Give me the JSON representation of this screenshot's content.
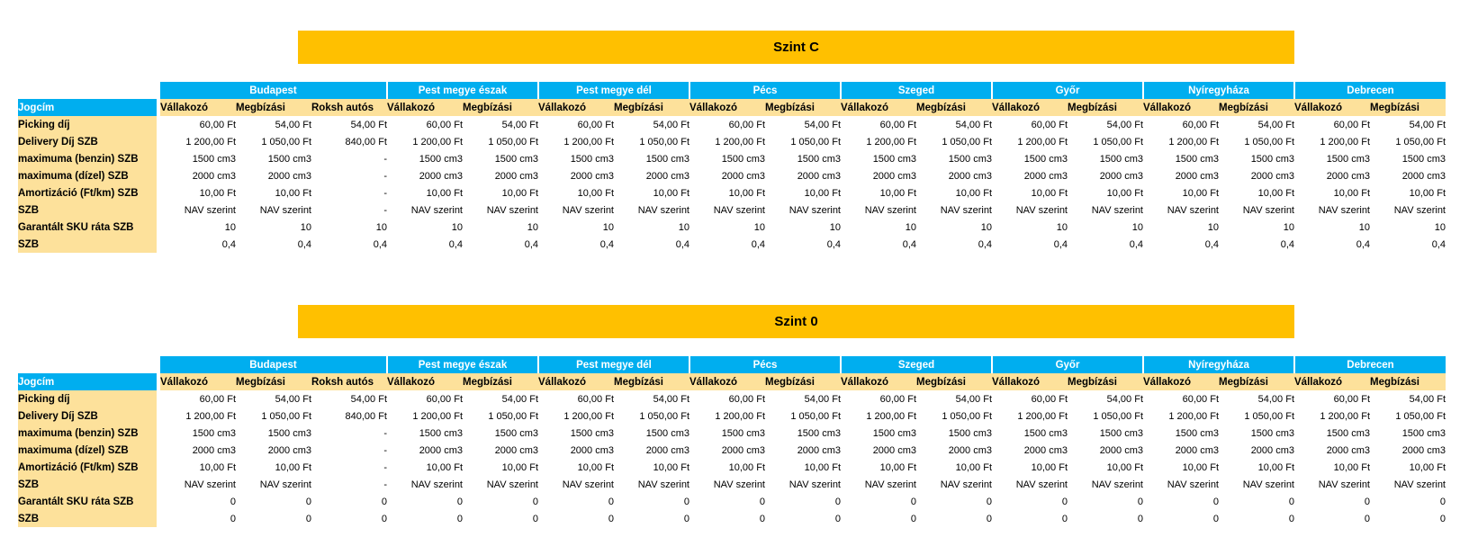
{
  "colors": {
    "banner_bg": "#FFC000",
    "banner_text": "#000000",
    "header_blue": "#00AEEF",
    "header_text": "#FFFFFF",
    "label_bg": "#FDE19B",
    "cell_bg": "#FFFFFF",
    "cell_text": "#000000"
  },
  "tables": [
    {
      "title": "Szint C",
      "corner_label": "Jogcím",
      "groups": [
        {
          "name": "Budapest",
          "columns": [
            "Vállakozó",
            "Megbízási",
            "Roksh autós"
          ]
        },
        {
          "name": "Pest megye észak",
          "columns": [
            "Vállakozó",
            "Megbízási"
          ]
        },
        {
          "name": "Pest megye dél",
          "columns": [
            "Vállakozó",
            "Megbízási"
          ]
        },
        {
          "name": "Pécs",
          "columns": [
            "Vállakozó",
            "Megbízási"
          ]
        },
        {
          "name": "Szeged",
          "columns": [
            "Vállakozó",
            "Megbízási"
          ]
        },
        {
          "name": "Győr",
          "columns": [
            "Vállakozó",
            "Megbízási"
          ]
        },
        {
          "name": "Nyíregyháza",
          "columns": [
            "Vállakozó",
            "Megbízási"
          ]
        },
        {
          "name": "Debrecen",
          "columns": [
            "Vállakozó",
            "Megbízási"
          ]
        }
      ],
      "rows": [
        {
          "label": "Picking díj",
          "values": [
            "60,00 Ft",
            "54,00 Ft",
            "54,00 Ft",
            "60,00 Ft",
            "54,00 Ft",
            "60,00 Ft",
            "54,00 Ft",
            "60,00 Ft",
            "54,00 Ft",
            "60,00 Ft",
            "54,00 Ft",
            "60,00 Ft",
            "54,00 Ft",
            "60,00 Ft",
            "54,00 Ft",
            "60,00 Ft",
            "54,00 Ft"
          ]
        },
        {
          "label": "Delivery Díj SZB",
          "values": [
            "1 200,00 Ft",
            "1 050,00 Ft",
            "840,00 Ft",
            "1 200,00 Ft",
            "1 050,00 Ft",
            "1 200,00 Ft",
            "1 050,00 Ft",
            "1 200,00 Ft",
            "1 050,00 Ft",
            "1 200,00 Ft",
            "1 050,00 Ft",
            "1 200,00 Ft",
            "1 050,00 Ft",
            "1 200,00 Ft",
            "1 050,00 Ft",
            "1 200,00 Ft",
            "1 050,00 Ft"
          ]
        },
        {
          "label": "maximuma (benzin) SZB",
          "values": [
            "1500 cm3",
            "1500 cm3",
            "-",
            "1500 cm3",
            "1500 cm3",
            "1500 cm3",
            "1500 cm3",
            "1500 cm3",
            "1500 cm3",
            "1500 cm3",
            "1500 cm3",
            "1500 cm3",
            "1500 cm3",
            "1500 cm3",
            "1500 cm3",
            "1500 cm3",
            "1500 cm3"
          ]
        },
        {
          "label": "maximuma (dízel) SZB",
          "values": [
            "2000 cm3",
            "2000 cm3",
            "-",
            "2000 cm3",
            "2000 cm3",
            "2000 cm3",
            "2000 cm3",
            "2000 cm3",
            "2000 cm3",
            "2000 cm3",
            "2000 cm3",
            "2000 cm3",
            "2000 cm3",
            "2000 cm3",
            "2000 cm3",
            "2000 cm3",
            "2000 cm3"
          ]
        },
        {
          "label": "Amortizáció (Ft/km) SZB",
          "values": [
            "10,00 Ft",
            "10,00 Ft",
            "-",
            "10,00 Ft",
            "10,00 Ft",
            "10,00 Ft",
            "10,00 Ft",
            "10,00 Ft",
            "10,00 Ft",
            "10,00 Ft",
            "10,00 Ft",
            "10,00 Ft",
            "10,00 Ft",
            "10,00 Ft",
            "10,00 Ft",
            "10,00 Ft",
            "10,00 Ft"
          ]
        },
        {
          "label": "SZB",
          "values": [
            "NAV szerint",
            "NAV szerint",
            "-",
            "NAV szerint",
            "NAV szerint",
            "NAV szerint",
            "NAV szerint",
            "NAV szerint",
            "NAV szerint",
            "NAV szerint",
            "NAV szerint",
            "NAV szerint",
            "NAV szerint",
            "NAV szerint",
            "NAV szerint",
            "NAV szerint",
            "NAV szerint"
          ]
        },
        {
          "label": "Garantált SKU ráta SZB",
          "values": [
            "10",
            "10",
            "10",
            "10",
            "10",
            "10",
            "10",
            "10",
            "10",
            "10",
            "10",
            "10",
            "10",
            "10",
            "10",
            "10",
            "10"
          ]
        },
        {
          "label": "SZB",
          "values": [
            "0,4",
            "0,4",
            "0,4",
            "0,4",
            "0,4",
            "0,4",
            "0,4",
            "0,4",
            "0,4",
            "0,4",
            "0,4",
            "0,4",
            "0,4",
            "0,4",
            "0,4",
            "0,4",
            "0,4"
          ]
        }
      ]
    },
    {
      "title": "Szint 0",
      "corner_label": "Jogcím",
      "groups": [
        {
          "name": "Budapest",
          "columns": [
            "Vállakozó",
            "Megbízási",
            "Roksh autós"
          ]
        },
        {
          "name": "Pest megye észak",
          "columns": [
            "Vállakozó",
            "Megbízási"
          ]
        },
        {
          "name": "Pest megye dél",
          "columns": [
            "Vállakozó",
            "Megbízási"
          ]
        },
        {
          "name": "Pécs",
          "columns": [
            "Vállakozó",
            "Megbízási"
          ]
        },
        {
          "name": "Szeged",
          "columns": [
            "Vállakozó",
            "Megbízási"
          ]
        },
        {
          "name": "Győr",
          "columns": [
            "Vállakozó",
            "Megbízási"
          ]
        },
        {
          "name": "Nyíregyháza",
          "columns": [
            "Vállakozó",
            "Megbízási"
          ]
        },
        {
          "name": "Debrecen",
          "columns": [
            "Vállakozó",
            "Megbízási"
          ]
        }
      ],
      "rows": [
        {
          "label": "Picking díj",
          "values": [
            "60,00 Ft",
            "54,00 Ft",
            "54,00 Ft",
            "60,00 Ft",
            "54,00 Ft",
            "60,00 Ft",
            "54,00 Ft",
            "60,00 Ft",
            "54,00 Ft",
            "60,00 Ft",
            "54,00 Ft",
            "60,00 Ft",
            "54,00 Ft",
            "60,00 Ft",
            "54,00 Ft",
            "60,00 Ft",
            "54,00 Ft"
          ]
        },
        {
          "label": "Delivery Díj SZB",
          "values": [
            "1 200,00 Ft",
            "1 050,00 Ft",
            "840,00 Ft",
            "1 200,00 Ft",
            "1 050,00 Ft",
            "1 200,00 Ft",
            "1 050,00 Ft",
            "1 200,00 Ft",
            "1 050,00 Ft",
            "1 200,00 Ft",
            "1 050,00 Ft",
            "1 200,00 Ft",
            "1 050,00 Ft",
            "1 200,00 Ft",
            "1 050,00 Ft",
            "1 200,00 Ft",
            "1 050,00 Ft"
          ]
        },
        {
          "label": "maximuma (benzin) SZB",
          "values": [
            "1500 cm3",
            "1500 cm3",
            "-",
            "1500 cm3",
            "1500 cm3",
            "1500 cm3",
            "1500 cm3",
            "1500 cm3",
            "1500 cm3",
            "1500 cm3",
            "1500 cm3",
            "1500 cm3",
            "1500 cm3",
            "1500 cm3",
            "1500 cm3",
            "1500 cm3",
            "1500 cm3"
          ]
        },
        {
          "label": "maximuma (dízel) SZB",
          "values": [
            "2000 cm3",
            "2000 cm3",
            "-",
            "2000 cm3",
            "2000 cm3",
            "2000 cm3",
            "2000 cm3",
            "2000 cm3",
            "2000 cm3",
            "2000 cm3",
            "2000 cm3",
            "2000 cm3",
            "2000 cm3",
            "2000 cm3",
            "2000 cm3",
            "2000 cm3",
            "2000 cm3"
          ]
        },
        {
          "label": "Amortizáció (Ft/km) SZB",
          "values": [
            "10,00 Ft",
            "10,00 Ft",
            "-",
            "10,00 Ft",
            "10,00 Ft",
            "10,00 Ft",
            "10,00 Ft",
            "10,00 Ft",
            "10,00 Ft",
            "10,00 Ft",
            "10,00 Ft",
            "10,00 Ft",
            "10,00 Ft",
            "10,00 Ft",
            "10,00 Ft",
            "10,00 Ft",
            "10,00 Ft"
          ]
        },
        {
          "label": "SZB",
          "values": [
            "NAV szerint",
            "NAV szerint",
            "-",
            "NAV szerint",
            "NAV szerint",
            "NAV szerint",
            "NAV szerint",
            "NAV szerint",
            "NAV szerint",
            "NAV szerint",
            "NAV szerint",
            "NAV szerint",
            "NAV szerint",
            "NAV szerint",
            "NAV szerint",
            "NAV szerint",
            "NAV szerint"
          ]
        },
        {
          "label": "Garantált SKU ráta SZB",
          "values": [
            "0",
            "0",
            "0",
            "0",
            "0",
            "0",
            "0",
            "0",
            "0",
            "0",
            "0",
            "0",
            "0",
            "0",
            "0",
            "0",
            "0"
          ]
        },
        {
          "label": "SZB",
          "values": [
            "0",
            "0",
            "0",
            "0",
            "0",
            "0",
            "0",
            "0",
            "0",
            "0",
            "0",
            "0",
            "0",
            "0",
            "0",
            "0",
            "0"
          ]
        }
      ]
    }
  ]
}
